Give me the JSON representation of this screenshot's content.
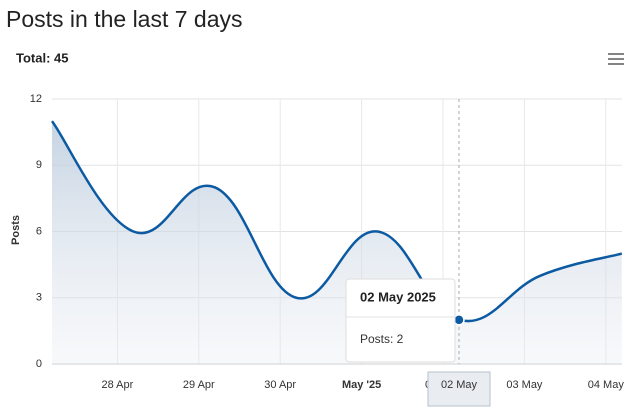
{
  "chart_data": {
    "type": "area-line",
    "title": "Posts in the last 7 days",
    "subtitle": "Total: 45",
    "y_label": "Posts",
    "x": [
      "2025-04-27",
      "2025-04-28",
      "2025-04-29",
      "2025-04-30",
      "2025-05-01",
      "2025-05-02",
      "2025-05-03",
      "2025-05-04"
    ],
    "series": [
      {
        "name": "Posts",
        "color": "#0b5aa2",
        "values": [
          11,
          6,
          8,
          3,
          6,
          2,
          4,
          5
        ]
      }
    ],
    "ylim": [
      0,
      12
    ],
    "yticks": [
      0,
      3,
      6,
      9,
      12
    ],
    "xticks": [
      {
        "value": "2025-04-28",
        "label": "28 Apr"
      },
      {
        "value": "2025-04-29",
        "label": "29 Apr"
      },
      {
        "value": "2025-04-30",
        "label": "30 Apr"
      },
      {
        "value": "2025-05-01",
        "label": "May '25"
      },
      {
        "value": "2025-05-02",
        "label": "02 May"
      },
      {
        "value": "2025-05-03",
        "label": "03 May"
      },
      {
        "value": "2025-05-04",
        "label": "04 May"
      }
    ],
    "grid": true,
    "tooltip": {
      "index": 5,
      "title": "02 May 2025",
      "text": "Posts: 2",
      "crosshair_label": "02 May"
    }
  }
}
